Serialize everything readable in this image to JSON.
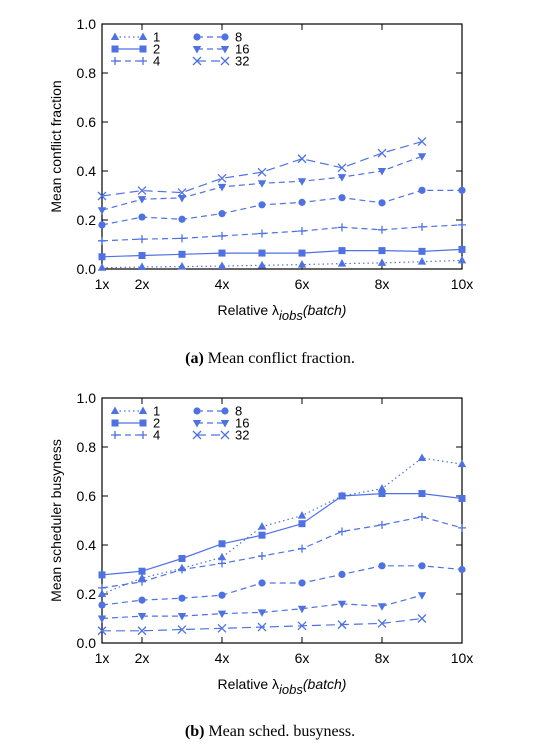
{
  "chart_data": [
    {
      "type": "line",
      "x": [
        1,
        2,
        3,
        4,
        5,
        6,
        7,
        8,
        9,
        10
      ],
      "xticks": [
        1,
        2,
        4,
        6,
        8,
        10
      ],
      "xtick_labels": [
        "1x",
        "2x",
        "4x",
        "6x",
        "8x",
        "10x"
      ],
      "xlabel_main": "Relative λ",
      "xlabel_sub": "jobs",
      "xlabel_tail": "(batch)",
      "ylabel": "Mean conflict fraction",
      "ylim": [
        0,
        1.0
      ],
      "yticks": [
        "0.0",
        "0.2",
        "0.4",
        "0.6",
        "0.8",
        "1.0"
      ],
      "legend_position": "top-left",
      "series": [
        {
          "name": "1",
          "marker": "triangle-up",
          "dash": "dotted",
          "values": [
            0.005,
            0.008,
            0.01,
            0.012,
            0.015,
            0.018,
            0.022,
            0.025,
            0.03,
            0.035
          ]
        },
        {
          "name": "2",
          "marker": "square",
          "dash": "solid",
          "values": [
            0.05,
            0.055,
            0.06,
            0.065,
            0.065,
            0.065,
            0.075,
            0.075,
            0.072,
            0.08
          ]
        },
        {
          "name": "4",
          "marker": "plus",
          "dash": "dashed",
          "values": [
            0.115,
            0.122,
            0.125,
            0.135,
            0.145,
            0.155,
            0.17,
            0.16,
            0.172,
            0.18
          ]
        },
        {
          "name": "8",
          "marker": "circle",
          "dash": "dashed",
          "values": [
            0.18,
            0.212,
            0.203,
            0.226,
            0.262,
            0.272,
            0.291,
            0.27,
            0.321,
            0.321
          ]
        },
        {
          "name": "16",
          "marker": "triangle-down",
          "dash": "dashed",
          "values": [
            0.24,
            0.285,
            0.29,
            0.335,
            0.35,
            0.358,
            0.375,
            0.4,
            0.46,
            null
          ]
        },
        {
          "name": "32",
          "marker": "x",
          "dash": "longdash",
          "values": [
            0.298,
            0.32,
            0.312,
            0.37,
            0.395,
            0.45,
            0.413,
            0.473,
            0.52,
            null
          ]
        }
      ]
    },
    {
      "type": "line",
      "x": [
        1,
        2,
        3,
        4,
        5,
        6,
        7,
        8,
        9,
        10
      ],
      "xticks": [
        1,
        2,
        4,
        6,
        8,
        10
      ],
      "xtick_labels": [
        "1x",
        "2x",
        "4x",
        "6x",
        "8x",
        "10x"
      ],
      "xlabel_main": "Relative λ",
      "xlabel_sub": "jobs",
      "xlabel_tail": "(batch)",
      "ylabel": "Mean scheduler busyness",
      "ylim": [
        0,
        1.0
      ],
      "yticks": [
        "0.0",
        "0.2",
        "0.4",
        "0.6",
        "0.8",
        "1.0"
      ],
      "legend_position": "top-left",
      "series": [
        {
          "name": "1",
          "marker": "triangle-up",
          "dash": "dotted",
          "values": [
            0.2,
            0.265,
            0.305,
            0.35,
            0.475,
            0.52,
            0.6,
            0.63,
            0.755,
            0.73
          ]
        },
        {
          "name": "2",
          "marker": "square",
          "dash": "solid",
          "values": [
            0.278,
            0.293,
            0.345,
            0.405,
            0.44,
            0.487,
            0.6,
            0.61,
            0.61,
            0.59
          ]
        },
        {
          "name": "4",
          "marker": "plus",
          "dash": "dashed",
          "values": [
            0.225,
            0.25,
            0.3,
            0.325,
            0.355,
            0.385,
            0.455,
            0.482,
            0.515,
            0.47
          ]
        },
        {
          "name": "8",
          "marker": "circle",
          "dash": "dashed",
          "values": [
            0.155,
            0.175,
            0.183,
            0.195,
            0.245,
            0.245,
            0.28,
            0.315,
            0.315,
            0.3
          ]
        },
        {
          "name": "16",
          "marker": "triangle-down",
          "dash": "dashed",
          "values": [
            0.1,
            0.11,
            0.11,
            0.12,
            0.125,
            0.14,
            0.16,
            0.15,
            0.195,
            null
          ]
        },
        {
          "name": "32",
          "marker": "x",
          "dash": "longdash",
          "values": [
            0.05,
            0.05,
            0.055,
            0.06,
            0.065,
            0.07,
            0.075,
            0.08,
            0.1,
            null
          ]
        }
      ]
    }
  ],
  "captions": {
    "a_label": "(a)",
    "a_text": " Mean conflict fraction.",
    "b_label": "(b)",
    "b_text": " Mean sched. busyness."
  },
  "colors": {
    "series": "#4f72e3",
    "axis": "#000000"
  }
}
